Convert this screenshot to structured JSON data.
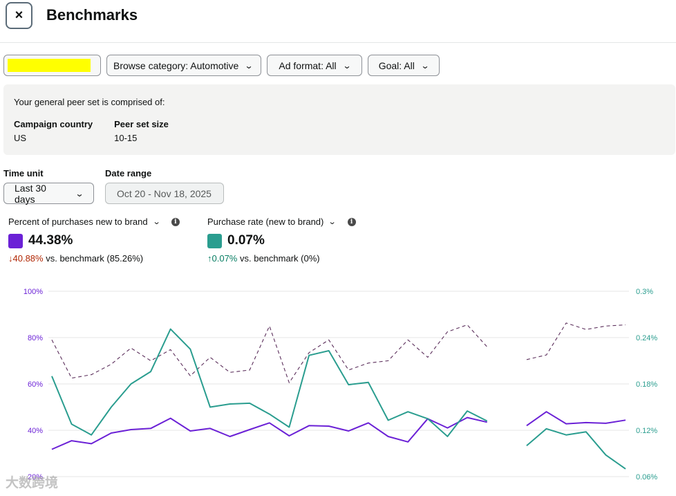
{
  "header": {
    "title": "Benchmarks",
    "close_icon": "×"
  },
  "filters": {
    "browse_category": "Browse category: Automotive",
    "ad_format": "Ad format: All",
    "goal": "Goal: All"
  },
  "peer_set": {
    "intro": "Your general peer set is comprised of:",
    "country_label": "Campaign country",
    "country_value": "US",
    "size_label": "Peer set size",
    "size_value": "10-15"
  },
  "controls": {
    "time_unit_label": "Time unit",
    "time_unit_value": "Last 30 days",
    "date_range_label": "Date range",
    "date_range_value": "Oct 20 - Nov 18, 2025"
  },
  "metrics": [
    {
      "label": "Percent of purchases new to brand",
      "value": "44.38%",
      "color": "#6b21d6",
      "change_arrow": "↓",
      "change": "40.88%",
      "benchmark_text": "vs. benchmark (85.26%)"
    },
    {
      "label": "Purchase rate (new to brand)",
      "value": "0.07%",
      "color": "#2a9d8f",
      "change_arrow": "↑",
      "change": "0.07%",
      "benchmark_text": "vs. benchmark (0%)"
    }
  ],
  "chart_data": {
    "type": "line",
    "x": [
      1,
      2,
      3,
      4,
      5,
      6,
      7,
      8,
      9,
      10,
      11,
      12,
      13,
      14,
      15,
      16,
      17,
      18,
      19,
      20,
      21,
      22,
      23,
      24,
      25,
      26,
      27,
      28,
      29,
      30
    ],
    "ylim_left": [
      20,
      100
    ],
    "yticks_left": [
      "100%",
      "80%",
      "60%",
      "40%",
      "20%"
    ],
    "ylim_right": [
      0.06,
      0.3
    ],
    "yticks_right": [
      "0.3%",
      "0.24%",
      "0.18%",
      "0.12%",
      "0.06%"
    ],
    "grid": true,
    "series": [
      {
        "name": "Percent of purchases new to brand",
        "axis": "left",
        "style": "solid",
        "color": "#6b21d6",
        "values": [
          31.8,
          35.5,
          34.2,
          38.8,
          40.3,
          40.8,
          45.2,
          39.7,
          40.8,
          37.3,
          40.3,
          43.2,
          37.6,
          42.0,
          41.8,
          39.7,
          43.2,
          37.3,
          35.0,
          45.0,
          41.0,
          45.5,
          43.5,
          null,
          42.0,
          48.0,
          42.8,
          43.3,
          43.0,
          44.4
        ]
      },
      {
        "name": "Percent of purchases new to brand benchmark",
        "axis": "left",
        "style": "dashed",
        "color": "#5a2d5a",
        "values": [
          79.0,
          62.5,
          64.0,
          68.5,
          75.5,
          70.0,
          74.8,
          63.5,
          71.5,
          65.0,
          66.0,
          85.0,
          60.5,
          73.5,
          79.0,
          66.0,
          69.0,
          70.0,
          79.0,
          71.5,
          82.5,
          85.5,
          76.0,
          null,
          70.5,
          72.5,
          86.3,
          83.5,
          85.0,
          85.5
        ]
      },
      {
        "name": "Purchase rate (new to brand)",
        "axis": "right",
        "style": "solid",
        "color": "#2a9d8f",
        "values": [
          0.19,
          0.128,
          0.114,
          0.15,
          0.18,
          0.196,
          0.251,
          0.225,
          0.15,
          0.154,
          0.155,
          0.141,
          0.124,
          0.217,
          0.223,
          0.179,
          0.182,
          0.133,
          0.144,
          0.135,
          0.112,
          0.145,
          0.132,
          null,
          0.1,
          0.122,
          0.114,
          0.118,
          0.088,
          0.07
        ]
      }
    ]
  },
  "watermark": "大数跨境"
}
